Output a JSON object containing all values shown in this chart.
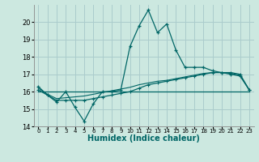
{
  "xlabel": "Humidex (Indice chaleur)",
  "background_color": "#cce8e0",
  "grid_color": "#aacccc",
  "line_color": "#006666",
  "xlim": [
    -0.5,
    23.5
  ],
  "ylim": [
    14,
    21
  ],
  "yticks": [
    14,
    15,
    16,
    17,
    18,
    19,
    20
  ],
  "xtick_labels": [
    "0",
    "1",
    "2",
    "3",
    "4",
    "5",
    "6",
    "7",
    "8",
    "9",
    "10",
    "11",
    "12",
    "13",
    "14",
    "15",
    "16",
    "17",
    "18",
    "19",
    "20",
    "21",
    "22",
    "23"
  ],
  "line1_x": [
    0,
    1,
    2,
    3,
    4,
    5,
    6,
    7,
    8,
    9,
    10,
    11,
    12,
    13,
    14,
    15,
    16,
    17,
    18,
    19,
    20,
    21,
    22,
    23
  ],
  "line1_y": [
    16.3,
    15.8,
    15.4,
    16.0,
    15.1,
    14.3,
    15.3,
    16.0,
    16.0,
    16.1,
    18.6,
    19.8,
    20.7,
    19.4,
    19.9,
    18.4,
    17.4,
    17.4,
    17.4,
    17.2,
    17.1,
    17.0,
    16.9,
    16.1
  ],
  "line2_x": [
    0,
    1,
    2,
    3,
    4,
    5,
    6,
    7,
    8,
    9,
    10,
    11,
    12,
    13,
    14,
    15,
    16,
    17,
    18,
    19,
    20,
    21,
    22,
    23
  ],
  "line2_y": [
    16.1,
    15.8,
    15.5,
    15.5,
    15.5,
    15.5,
    15.6,
    15.7,
    15.8,
    15.9,
    16.0,
    16.2,
    16.4,
    16.5,
    16.6,
    16.7,
    16.8,
    16.9,
    17.0,
    17.1,
    17.1,
    17.1,
    17.0,
    16.1
  ],
  "line3_x": [
    0,
    23
  ],
  "line3_y": [
    16.0,
    16.0
  ],
  "line4_x": [
    0,
    1,
    2,
    3,
    4,
    5,
    6,
    7,
    8,
    9,
    10,
    11,
    12,
    13,
    14,
    15,
    16,
    17,
    18,
    19,
    20,
    21,
    22,
    23
  ],
  "line4_y": [
    16.2,
    15.85,
    15.6,
    15.65,
    15.7,
    15.75,
    15.85,
    15.95,
    16.05,
    16.15,
    16.25,
    16.4,
    16.5,
    16.6,
    16.65,
    16.75,
    16.85,
    16.95,
    17.05,
    17.1,
    17.1,
    17.05,
    16.95,
    16.1
  ]
}
